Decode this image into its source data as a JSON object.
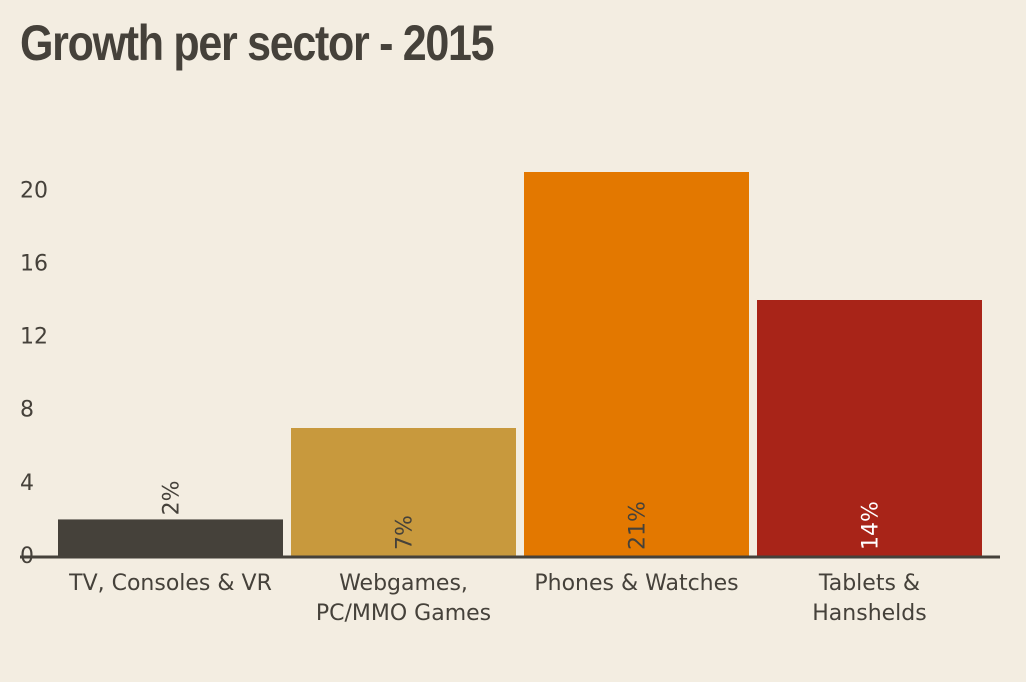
{
  "chart_data": {
    "type": "bar",
    "title": "Growth per sector - 2015",
    "xlabel": "",
    "ylabel": "",
    "categories": [
      [
        "TV, Consoles & VR"
      ],
      [
        "Webgames,",
        "PC/MMO Games"
      ],
      [
        "Phones & Watches"
      ],
      [
        "Tablets &",
        "Hanshelds"
      ]
    ],
    "values": [
      2,
      7,
      21,
      14
    ],
    "data_labels": [
      "2%",
      "7%",
      "21%",
      "14%"
    ],
    "colors": [
      "#45413a",
      "#c8993d",
      "#e37800",
      "#a82418"
    ],
    "label_colors": [
      "#45413a",
      "#45413a",
      "#45413a",
      "#ffffff"
    ],
    "ylim": [
      0,
      21
    ],
    "yticks": [
      0,
      4,
      8,
      12,
      16,
      20
    ],
    "grid": false,
    "legend": "none"
  }
}
